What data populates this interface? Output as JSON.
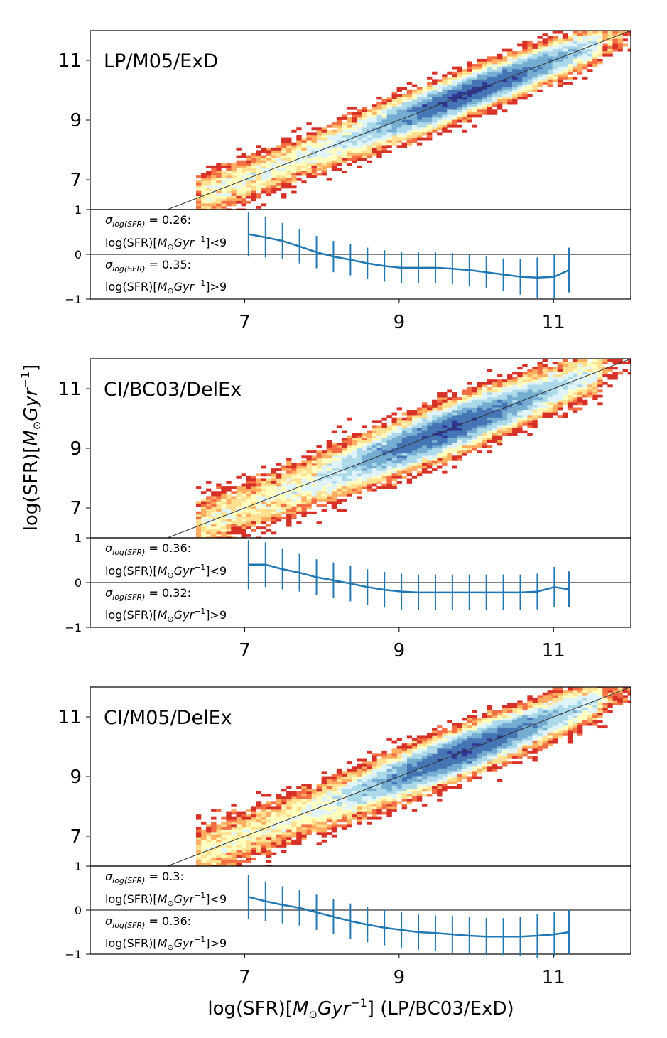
{
  "chart_data": {
    "type": "heatmap",
    "shared": {
      "xlabel_main": "log(SFR)[",
      "xlabel_unit_M": "M",
      "xlabel_unit_sun": "⊙",
      "xlabel_unit_gyr": "Gyr",
      "xlabel_unit_exp": "−1",
      "xlabel_tail": "] (LP/BC03/ExD)",
      "ylabel_main": "log(SFR)[",
      "ylabel_unit_M": "M",
      "ylabel_unit_sun": "⊙",
      "ylabel_unit_gyr": "Gyr",
      "ylabel_unit_exp": "−1",
      "ylabel_close": "]",
      "xlim": [
        5.0,
        12.0
      ],
      "ylim_main": [
        6.0,
        12.0
      ],
      "ylim_resid": [
        -1,
        1
      ],
      "xticks": [
        "7",
        "9",
        "11"
      ],
      "xtick_values": [
        7,
        9,
        11
      ],
      "yticks_main": [
        "7",
        "9",
        "11"
      ],
      "ytick_values_main": [
        7,
        9,
        11
      ],
      "yticks_resid": [
        "1",
        "0",
        "−1"
      ],
      "ytick_values_resid": [
        1,
        0,
        -1
      ],
      "colormap": [
        "#a50026",
        "#d73027",
        "#f46d43",
        "#fdae61",
        "#fee090",
        "#ffffbf",
        "#e0f3f8",
        "#abd9e9",
        "#74add1",
        "#4575b4",
        "#313695"
      ],
      "one_to_one_line_color": "#333333",
      "error_line_color": "#1f77b4",
      "errorbar_x": [
        7.05,
        7.27,
        7.49,
        7.71,
        7.93,
        8.15,
        8.37,
        8.59,
        8.81,
        9.03,
        9.25,
        9.47,
        9.69,
        9.91,
        10.13,
        10.35,
        10.57,
        10.79,
        11.01,
        11.2
      ]
    },
    "panels": [
      {
        "title": "LP/M05/ExD",
        "seed": 11,
        "peak_x": 9.9,
        "scatter": 0.35,
        "sigma_low_label": "σ",
        "sigma_low_sub": "log(SFR)",
        "sigma_low_value": " = 0.26:",
        "cond_low_pre": "log(SFR)[",
        "cond_low_M": "M",
        "cond_low_sun": "⊙",
        "cond_low_gyr": "Gyr",
        "cond_low_exp": "−1",
        "cond_low_post": "]<9",
        "sigma_high_label": "σ",
        "sigma_high_sub": "log(SFR)",
        "sigma_high_value": " = 0.35:",
        "cond_high_pre": "log(SFR)[",
        "cond_high_M": "M",
        "cond_high_sun": "⊙",
        "cond_high_gyr": "Gyr",
        "cond_high_exp": "−1",
        "cond_high_post": "]>9",
        "resid_mean": [
          0.45,
          0.38,
          0.3,
          0.18,
          0.05,
          -0.05,
          -0.12,
          -0.2,
          -0.26,
          -0.3,
          -0.3,
          -0.3,
          -0.32,
          -0.35,
          -0.4,
          -0.45,
          -0.5,
          -0.52,
          -0.5,
          -0.35
        ],
        "resid_err": [
          0.5,
          0.45,
          0.4,
          0.38,
          0.36,
          0.35,
          0.35,
          0.35,
          0.35,
          0.35,
          0.35,
          0.35,
          0.35,
          0.35,
          0.35,
          0.36,
          0.4,
          0.45,
          0.5,
          0.5
        ]
      },
      {
        "title": "CI/BC03/DelEx",
        "seed": 23,
        "peak_x": 9.6,
        "scatter": 0.42,
        "sigma_low_label": "σ",
        "sigma_low_sub": "log(SFR)",
        "sigma_low_value": " = 0.36:",
        "cond_low_pre": "log(SFR)[",
        "cond_low_M": "M",
        "cond_low_sun": "⊙",
        "cond_low_gyr": "Gyr",
        "cond_low_exp": "−1",
        "cond_low_post": "]<9",
        "sigma_high_label": "σ",
        "sigma_high_sub": "log(SFR)",
        "sigma_high_value": " = 0.32:",
        "cond_high_pre": "log(SFR)[",
        "cond_high_M": "M",
        "cond_high_sun": "⊙",
        "cond_high_gyr": "Gyr",
        "cond_high_exp": "−1",
        "cond_high_post": "]>9",
        "resid_mean": [
          0.4,
          0.4,
          0.3,
          0.22,
          0.12,
          0.05,
          -0.02,
          -0.1,
          -0.16,
          -0.2,
          -0.22,
          -0.22,
          -0.22,
          -0.22,
          -0.22,
          -0.22,
          -0.22,
          -0.2,
          -0.1,
          -0.15
        ],
        "resid_err": [
          0.55,
          0.5,
          0.45,
          0.42,
          0.4,
          0.4,
          0.4,
          0.4,
          0.4,
          0.4,
          0.4,
          0.4,
          0.4,
          0.4,
          0.4,
          0.4,
          0.4,
          0.4,
          0.45,
          0.4
        ]
      },
      {
        "title": "CI/M05/DelEx",
        "seed": 37,
        "peak_x": 9.8,
        "scatter": 0.4,
        "sigma_low_label": "σ",
        "sigma_low_sub": "log(SFR)",
        "sigma_low_value": " = 0.3:",
        "cond_low_pre": "log(SFR)[",
        "cond_low_M": "M",
        "cond_low_sun": "⊙",
        "cond_low_gyr": "Gyr",
        "cond_low_exp": "−1",
        "cond_low_post": "]<9",
        "sigma_high_label": "σ",
        "sigma_high_sub": "log(SFR)",
        "sigma_high_value": " = 0.36:",
        "cond_high_pre": "log(SFR)[",
        "cond_high_M": "M",
        "cond_high_sun": "⊙",
        "cond_high_gyr": "Gyr",
        "cond_high_exp": "−1",
        "cond_high_post": "]>9",
        "resid_mean": [
          0.3,
          0.2,
          0.12,
          0.05,
          -0.05,
          -0.15,
          -0.25,
          -0.33,
          -0.4,
          -0.45,
          -0.5,
          -0.52,
          -0.55,
          -0.58,
          -0.6,
          -0.6,
          -0.6,
          -0.58,
          -0.55,
          -0.5
        ],
        "resid_err": [
          0.5,
          0.45,
          0.42,
          0.4,
          0.4,
          0.4,
          0.4,
          0.4,
          0.4,
          0.4,
          0.4,
          0.4,
          0.42,
          0.42,
          0.42,
          0.42,
          0.45,
          0.5,
          0.5,
          0.5
        ]
      }
    ]
  }
}
